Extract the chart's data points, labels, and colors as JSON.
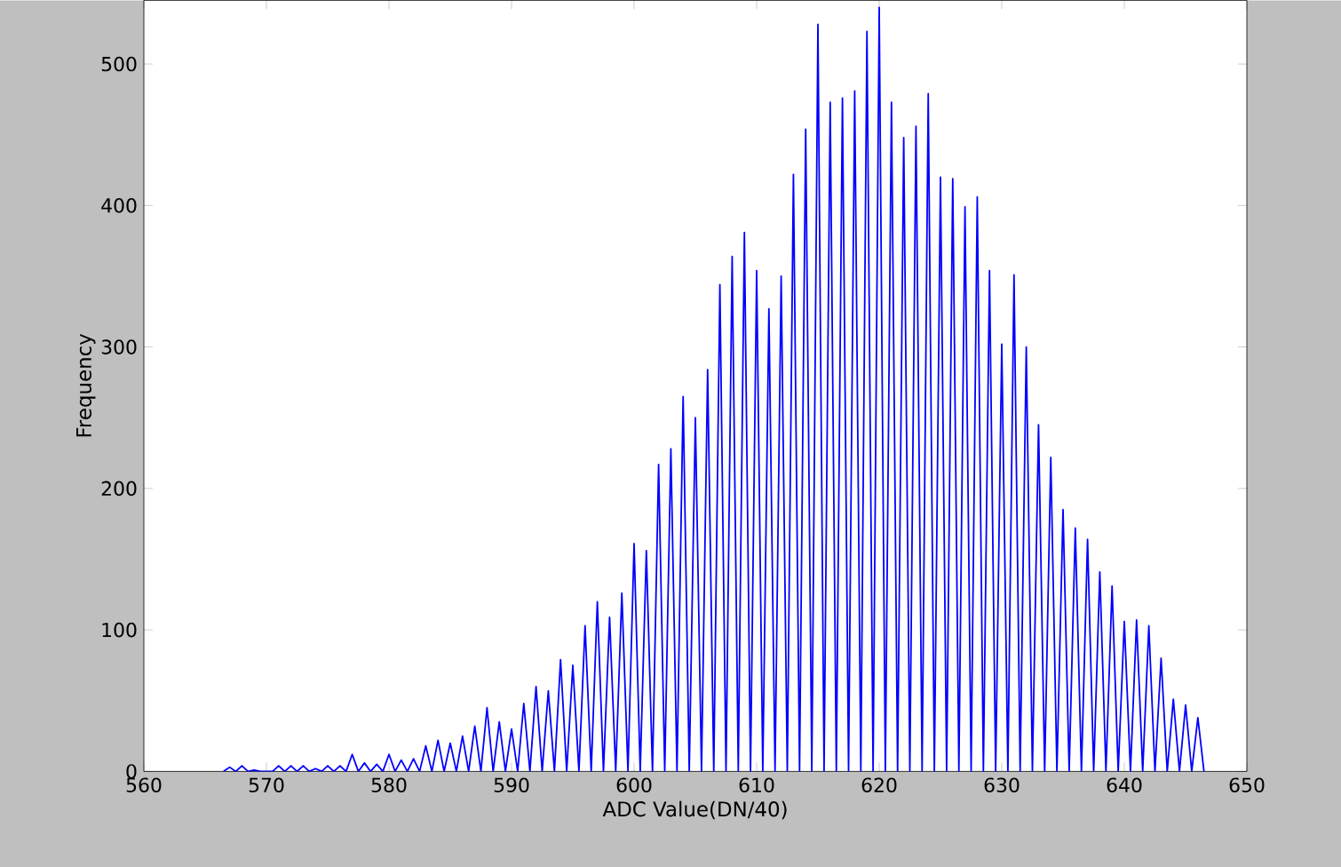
{
  "chart_data": {
    "type": "line",
    "xlabel": "ADC Value(DN/40)",
    "ylabel": "Frequency",
    "color": "#0000ff",
    "xlim": [
      560,
      650
    ],
    "ylim": [
      0,
      545
    ],
    "xticks": [
      560,
      570,
      580,
      590,
      600,
      610,
      620,
      630,
      640,
      650
    ],
    "yticks": [
      0,
      100,
      200,
      300,
      400,
      500
    ],
    "x": [
      566.5,
      567,
      567.5,
      568,
      568.5,
      569,
      569.5,
      570,
      570.5,
      571,
      571.5,
      572,
      572.5,
      573,
      573.5,
      574,
      574.5,
      575,
      575.5,
      576,
      576.5,
      577,
      577.5,
      578,
      578.5,
      579,
      579.5,
      580,
      580.5,
      581,
      581.5,
      582,
      582.5,
      583,
      583.5,
      584,
      584.5,
      585,
      585.5,
      586,
      586.5,
      587,
      587.5,
      588,
      588.5,
      589,
      589.5,
      590,
      590.5,
      591,
      591.5,
      592,
      592.5,
      593,
      593.5,
      594,
      594.5,
      595,
      595.5,
      596,
      596.5,
      597,
      597.5,
      598,
      598.5,
      599,
      599.5,
      600,
      600.5,
      601,
      601.5,
      602,
      602.5,
      603,
      603.5,
      604,
      604.5,
      605,
      605.5,
      606,
      606.5,
      607,
      607.5,
      608,
      608.5,
      609,
      609.5,
      610,
      610.5,
      611,
      611.5,
      612,
      612.5,
      613,
      613.5,
      614,
      614.5,
      615,
      615.5,
      616,
      616.5,
      617,
      617.5,
      618,
      618.5,
      619,
      619.5,
      620,
      620.5,
      621,
      621.5,
      622,
      622.5,
      623,
      623.5,
      624,
      624.5,
      625,
      625.5,
      626,
      626.5,
      627,
      627.5,
      628,
      628.5,
      629,
      629.5,
      630,
      630.5,
      631,
      631.5,
      632,
      632.5,
      633,
      633.5,
      634,
      634.5,
      635,
      635.5,
      636,
      636.5,
      637,
      637.5,
      638,
      638.5,
      639,
      639.5,
      640,
      640.5,
      641,
      641.5,
      642,
      642.5,
      643,
      643.5,
      644,
      644.5,
      645,
      645.5,
      646,
      646.5
    ],
    "values": [
      0,
      3,
      0,
      4,
      0,
      1,
      0,
      0,
      0,
      4,
      0,
      4,
      0,
      4,
      0,
      2,
      0,
      4,
      0,
      4,
      0,
      12,
      0,
      6,
      0,
      5,
      0,
      12,
      0,
      8,
      0,
      9,
      0,
      18,
      0,
      22,
      0,
      20,
      0,
      25,
      0,
      32,
      0,
      45,
      0,
      35,
      0,
      30,
      0,
      48,
      0,
      60,
      0,
      57,
      0,
      79,
      0,
      75,
      0,
      103,
      0,
      120,
      0,
      109,
      0,
      126,
      0,
      161,
      0,
      156,
      0,
      217,
      0,
      228,
      0,
      265,
      0,
      250,
      0,
      284,
      0,
      344,
      0,
      364,
      0,
      381,
      0,
      354,
      0,
      327,
      0,
      350,
      0,
      422,
      0,
      454,
      0,
      528,
      0,
      473,
      0,
      476,
      0,
      481,
      0,
      523,
      0,
      540,
      0,
      473,
      0,
      448,
      0,
      456,
      0,
      479,
      0,
      420,
      0,
      419,
      0,
      399,
      0,
      406,
      0,
      354,
      0,
      302,
      0,
      351,
      0,
      300,
      0,
      245,
      0,
      222,
      0,
      185,
      0,
      172,
      0,
      164,
      0,
      141,
      0,
      131,
      0,
      106,
      0,
      107,
      0,
      103,
      0,
      80,
      0,
      51,
      0,
      47,
      0,
      38,
      0
    ]
  }
}
